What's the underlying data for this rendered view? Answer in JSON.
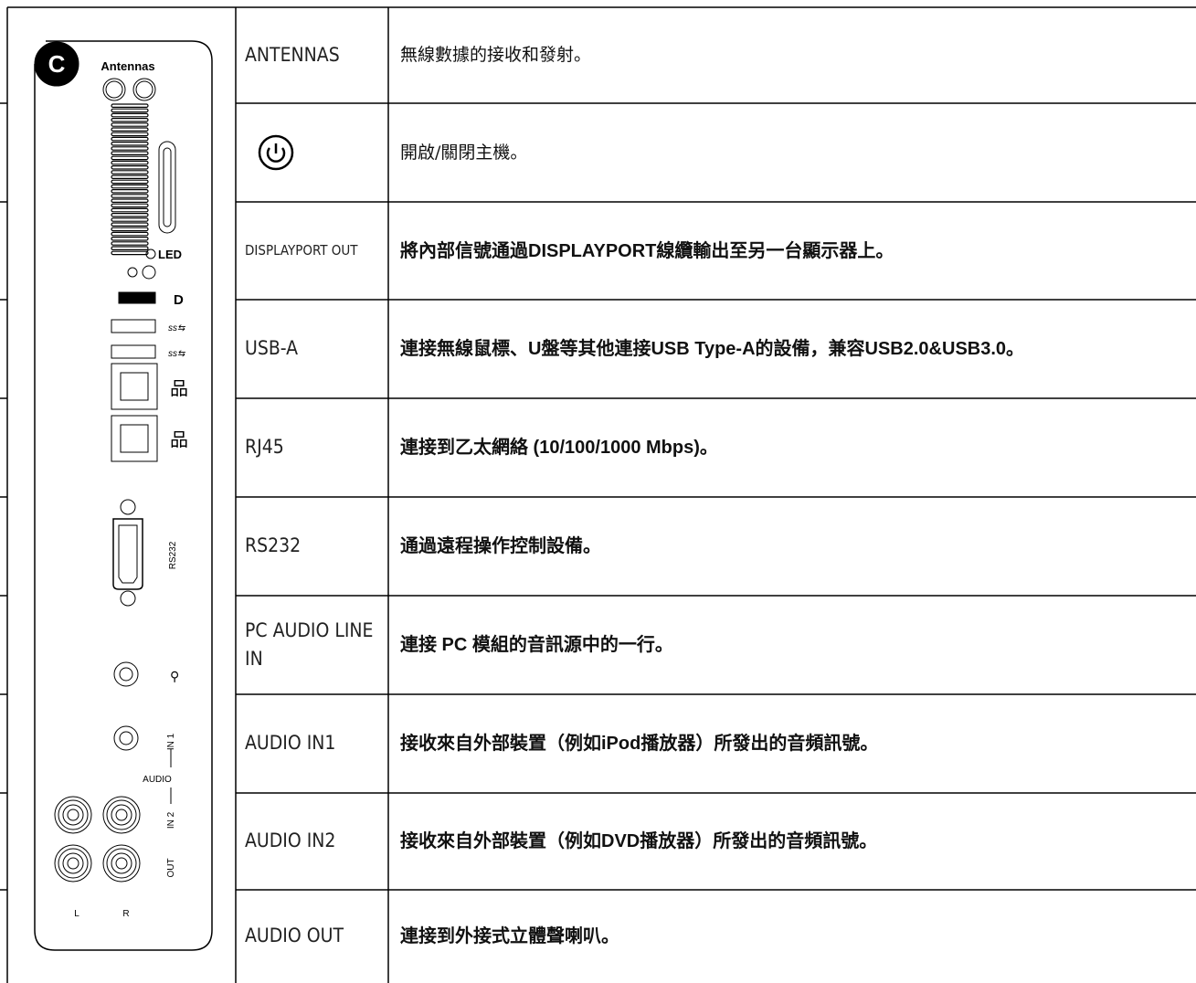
{
  "panel": {
    "badge": "C",
    "antennas": "Antennas",
    "led": "LED",
    "rs232": "RS232",
    "audio": "AUDIO",
    "in1": "IN 1",
    "in2": "IN 2",
    "out": "OUT",
    "left": "L",
    "right": "R"
  },
  "table": {
    "rows": [
      {
        "port": "ANTENNAS",
        "description": "無線數據的接收和發射。"
      },
      {
        "description": "開啟/關閉主機。"
      },
      {
        "port": "DISPLAYPORT OUT",
        "description": "將內部信號通過DISPLAYPORT線纜輸出至另一台顯示器上。"
      },
      {
        "port": "USB-A",
        "description": "連接無線鼠標、U盤等其他連接USB Type-A的設備，兼容USB2.0&USB3.0。"
      },
      {
        "port": "RJ45",
        "description": "連接到乙太網絡 (10/100/1000 Mbps)。"
      },
      {
        "port": "RS232",
        "description": "通過遠程操作控制設備。"
      },
      {
        "port": "PC AUDIO LINE IN",
        "description": "連接 PC 模組的音訊源中的一行。"
      },
      {
        "port": "AUDIO IN1",
        "description": "接收來自外部裝置（例如iPod播放器）所發出的音頻訊號。"
      },
      {
        "port": "AUDIO IN2",
        "description": "接收來自外部裝置（例如DVD播放器）所發出的音頻訊號。"
      },
      {
        "port": "AUDIO OUT",
        "description": "連接到外接式立體聲喇叭。"
      }
    ]
  }
}
